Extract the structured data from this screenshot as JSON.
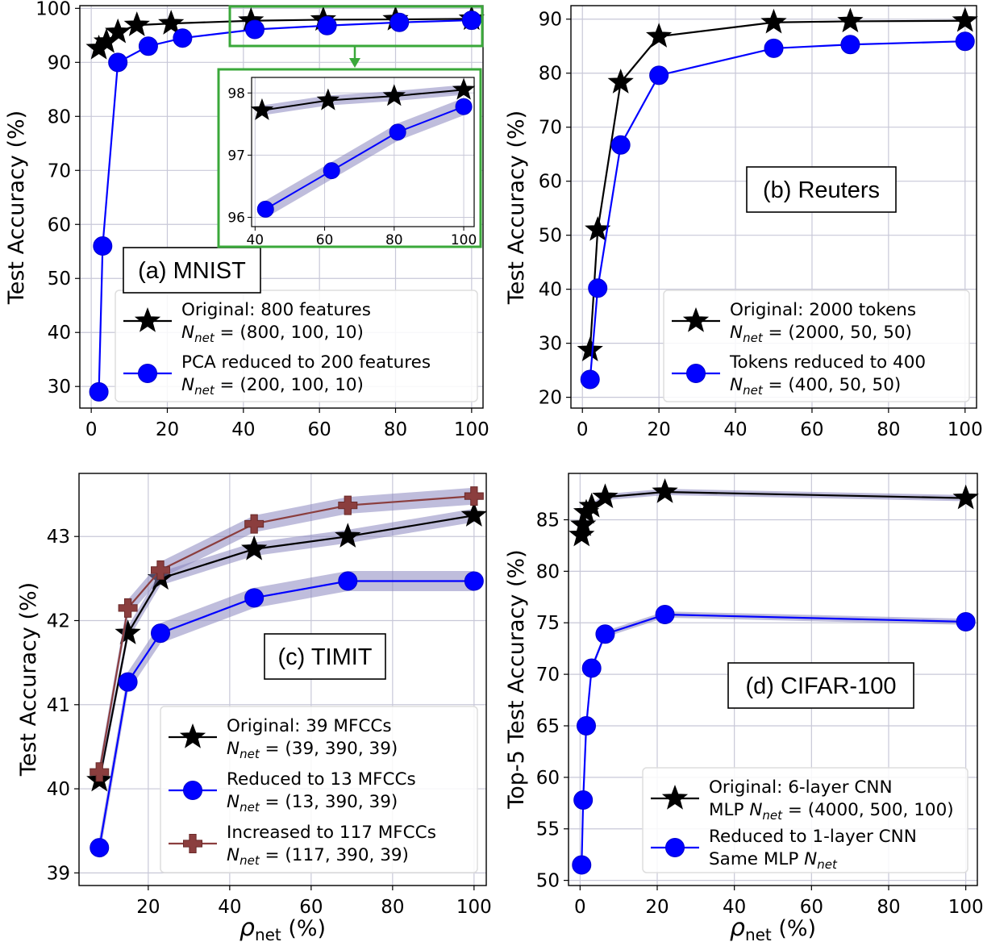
{
  "colors": {
    "original": "#000000",
    "reduced": "#0000ff",
    "increased": "#8b3e3e",
    "band": "#8a86bf",
    "inset_border": "#3aa83a",
    "grid": "#c8c8d8"
  },
  "chart_data": [
    {
      "type": "line",
      "panel_label": "(a) MNIST",
      "xlabel": "",
      "ylabel": "Test Accuracy (%)",
      "xlim": [
        -3,
        103
      ],
      "ylim": [
        26,
        100.5
      ],
      "xticks": [
        0,
        20,
        40,
        60,
        80,
        100
      ],
      "yticks": [
        30,
        40,
        50,
        60,
        70,
        80,
        90,
        100
      ],
      "grid": true,
      "legend_position": "bottom-right",
      "series": [
        {
          "name": "Original: 800 features",
          "sub": "(800, 100, 10)",
          "marker": "star",
          "color": "original",
          "x": [
            2,
            4,
            7,
            12,
            21,
            42,
            61,
            80,
            100
          ],
          "y": [
            92.6,
            93.8,
            95.6,
            96.9,
            97.2,
            97.7,
            97.9,
            97.95,
            98.05
          ]
        },
        {
          "name": "PCA reduced to 200 features",
          "sub": "(200, 100, 10)",
          "marker": "circle",
          "color": "reduced",
          "x": [
            2,
            3,
            7,
            15,
            24,
            43,
            62,
            81,
            100
          ],
          "y": [
            29,
            56,
            90,
            93,
            94.5,
            96.1,
            96.8,
            97.4,
            97.8
          ]
        }
      ],
      "inset": {
        "xlim": [
          39,
          103
        ],
        "ylim": [
          95.85,
          98.25
        ],
        "xticks": [
          40,
          60,
          80,
          100
        ],
        "yticks": [
          96,
          97,
          98
        ],
        "series": [
          {
            "marker": "star",
            "color": "original",
            "x": [
              42,
              61,
              80,
              100
            ],
            "y": [
              97.72,
              97.88,
              97.95,
              98.05
            ],
            "band": 0.08
          },
          {
            "marker": "circle",
            "color": "reduced",
            "x": [
              43,
              62,
              81,
              100
            ],
            "y": [
              96.13,
              96.75,
              97.37,
              97.78
            ],
            "band": 0.14
          }
        ]
      }
    },
    {
      "type": "line",
      "panel_label": "(b) Reuters",
      "xlabel": "",
      "ylabel": "Test Accuracy (%)",
      "xlim": [
        -3,
        103
      ],
      "ylim": [
        18,
        92.5
      ],
      "xticks": [
        0,
        20,
        40,
        60,
        80,
        100
      ],
      "yticks": [
        20,
        30,
        40,
        50,
        60,
        70,
        80,
        90
      ],
      "grid": true,
      "legend_position": "bottom-right",
      "series": [
        {
          "name": "Original: 2000 tokens",
          "sub": "(2000, 50, 50)",
          "marker": "star",
          "color": "original",
          "x": [
            2,
            4,
            10,
            20,
            50,
            70,
            100
          ],
          "y": [
            28.7,
            51,
            78.3,
            86.8,
            89.4,
            89.6,
            89.7
          ]
        },
        {
          "name": "Tokens reduced to 400",
          "sub": "(400, 50, 50)",
          "marker": "circle",
          "color": "reduced",
          "x": [
            2,
            4,
            10,
            20,
            50,
            70,
            100
          ],
          "y": [
            23.3,
            40.2,
            66.7,
            79.6,
            84.6,
            85.3,
            85.9
          ]
        }
      ]
    },
    {
      "type": "line",
      "panel_label": "(c) TIMIT",
      "xlabel": "ρnet (%)",
      "ylabel": "Test Accuracy (%)",
      "xlim": [
        3,
        103
      ],
      "ylim": [
        38.85,
        43.75
      ],
      "xticks": [
        20,
        40,
        60,
        80,
        100
      ],
      "yticks": [
        39,
        40,
        41,
        42,
        43
      ],
      "grid": true,
      "legend_position": "bottom-right",
      "series": [
        {
          "name": "Original: 39 MFCCs",
          "sub": "(39, 390, 39)",
          "marker": "star",
          "color": "original",
          "x": [
            8,
            15,
            23,
            46,
            69,
            100
          ],
          "y": [
            40.1,
            41.85,
            42.5,
            42.85,
            43.0,
            43.25
          ],
          "band": 0.08
        },
        {
          "name": "Reduced to 13 MFCCs",
          "sub": "(13, 390, 39)",
          "marker": "circle",
          "color": "reduced",
          "x": [
            8,
            15,
            23,
            46,
            69,
            100
          ],
          "y": [
            39.3,
            41.27,
            41.85,
            42.27,
            42.47,
            42.47
          ],
          "band": 0.12
        },
        {
          "name": "Increased to 117 MFCCs",
          "sub": "(117, 390, 39)",
          "marker": "plus",
          "color": "increased",
          "x": [
            8,
            15,
            23,
            46,
            69,
            100
          ],
          "y": [
            40.2,
            42.15,
            42.6,
            43.15,
            43.37,
            43.48
          ],
          "band": 0.1
        }
      ]
    },
    {
      "type": "line",
      "panel_label": "(d) CIFAR-100",
      "xlabel": "ρnet (%)",
      "ylabel": "Top-5 Test Accuracy (%)",
      "xlim": [
        -3,
        103
      ],
      "ylim": [
        49.5,
        89.5
      ],
      "xticks": [
        0,
        20,
        40,
        60,
        80,
        100
      ],
      "yticks": [
        50,
        55,
        60,
        65,
        70,
        75,
        80,
        85
      ],
      "grid": true,
      "legend_position": "bottom-right",
      "series": [
        {
          "name": "Original: 6-layer CNN",
          "sub": "(4000, 500, 100)",
          "sub_prefix": "MLP ",
          "marker": "star",
          "color": "original",
          "x": [
            0.4,
            0.8,
            1.6,
            3,
            6.5,
            22,
            100
          ],
          "y": [
            83.5,
            84.5,
            85.7,
            86.3,
            87.2,
            87.7,
            87.1
          ],
          "band": 0.3
        },
        {
          "name": "Reduced to 1-layer CNN",
          "sub": "Same MLP",
          "sub_plain": true,
          "marker": "circle",
          "color": "reduced",
          "x": [
            0.4,
            0.8,
            1.6,
            3,
            6.5,
            22,
            100
          ],
          "y": [
            51.5,
            57.8,
            65,
            70.6,
            73.9,
            75.8,
            75.1
          ],
          "band": 0.3
        }
      ]
    }
  ]
}
